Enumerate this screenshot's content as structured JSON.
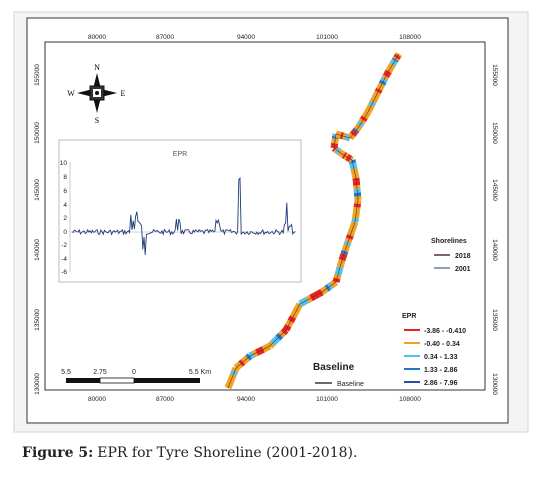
{
  "map": {
    "x_ticks": [
      "80000",
      "87000",
      "94000",
      "101000",
      "108000"
    ],
    "y_ticks": [
      "155000",
      "150000",
      "145000",
      "140000",
      "135000",
      "130000"
    ],
    "compass": {
      "n": "N",
      "s": "S",
      "e": "E",
      "w": "W"
    },
    "inset": {
      "title": "EPR",
      "y_ticks": [
        "10",
        "8",
        "6",
        "4",
        "2",
        "0",
        "-2",
        "-4",
        "-6"
      ]
    },
    "legend_shorelines": {
      "title": "Shorelines",
      "items": [
        {
          "label": "2018",
          "color": "#5a2a4a"
        },
        {
          "label": "2001",
          "color": "#6a7aa8"
        }
      ]
    },
    "legend_epr": {
      "title": "EPR",
      "items": [
        {
          "label": "-3.86 - -0.410",
          "color": "#e8201e"
        },
        {
          "label": "-0.40 - 0.34",
          "color": "#f0a21c"
        },
        {
          "label": "0.34 - 1.33",
          "color": "#4fc3ee"
        },
        {
          "label": "1.33 - 2.86",
          "color": "#1f78c8"
        },
        {
          "label": "2.86 - 7.96",
          "color": "#2a4f9a"
        }
      ]
    },
    "scale_bar": {
      "labels": [
        "5.5",
        "2.75",
        "0",
        "5.5 Km"
      ]
    },
    "baseline_legend": {
      "title": "Baseline",
      "label": "Baseline"
    }
  },
  "caption": {
    "label": "Figure 5:",
    "text": "EPR for Tyre Shoreline (2001-2018)."
  }
}
